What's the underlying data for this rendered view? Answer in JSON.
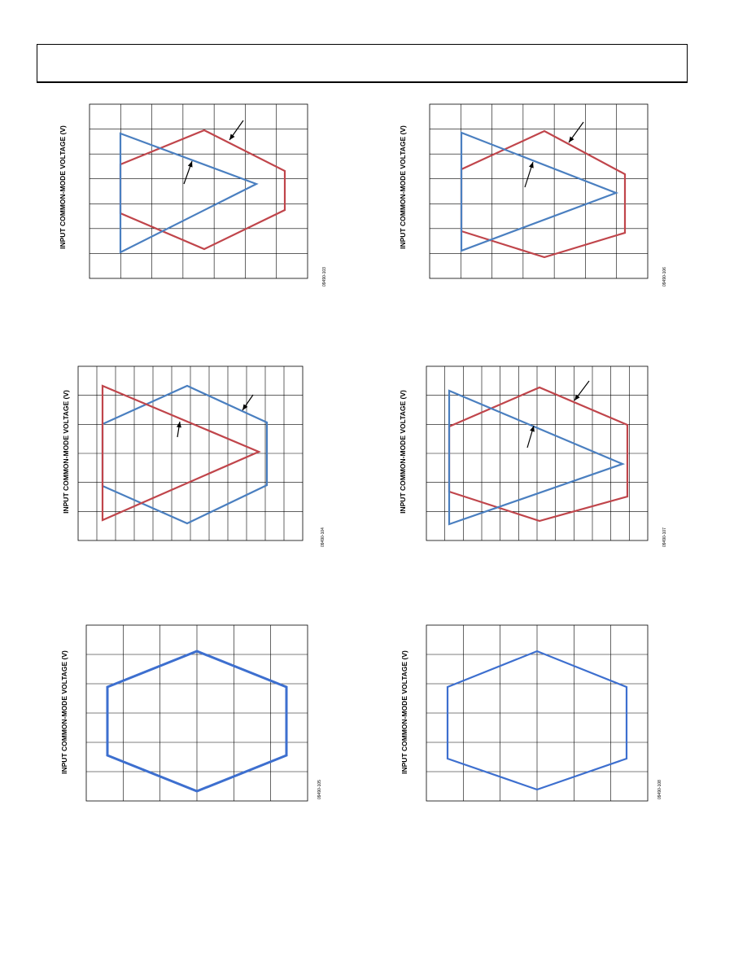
{
  "page": {
    "header_text": ""
  },
  "colors": {
    "red_trace": "#c0454b",
    "blue_trace": "#4a7fc0",
    "blue_trace_bottom": "#3d6fcf",
    "grid": "#000000"
  },
  "figures": [
    {
      "ylabel": "INPUT COMMON-MODE VOLTAGE (V)",
      "figure_id": "09490-103"
    },
    {
      "ylabel": "INPUT COMMON-MODE VOLTAGE (V)",
      "figure_id": "09490-106"
    },
    {
      "ylabel": "INPUT COMMON-MODE VOLTAGE (V)",
      "figure_id": "09490-104"
    },
    {
      "ylabel": "INPUT COMMON-MODE VOLTAGE (V)",
      "figure_id": "09490-107"
    },
    {
      "ylabel": "INPUT COMMON-MODE VOLTAGE (V)",
      "figure_id": "09490-105"
    },
    {
      "ylabel": "INPUT COMMON-MODE VOLTAGE (V)",
      "figure_id": "09490-108"
    }
  ],
  "chart_data": [
    {
      "type": "line",
      "title": "",
      "xlabel": "",
      "ylabel": "INPUT COMMON-MODE VOLTAGE (V)",
      "grid": true,
      "series": [
        {
          "color": "red",
          "shape": "hexagon"
        },
        {
          "color": "blue",
          "shape": "triangle"
        }
      ]
    },
    {
      "type": "line",
      "title": "",
      "xlabel": "",
      "ylabel": "INPUT COMMON-MODE VOLTAGE (V)",
      "grid": true,
      "series": [
        {
          "color": "red",
          "shape": "hexagon"
        },
        {
          "color": "blue",
          "shape": "triangle"
        }
      ]
    },
    {
      "type": "line",
      "title": "",
      "xlabel": "",
      "ylabel": "INPUT COMMON-MODE VOLTAGE (V)",
      "grid": true,
      "series": [
        {
          "color": "blue",
          "shape": "hexagon"
        },
        {
          "color": "red",
          "shape": "triangle"
        }
      ]
    },
    {
      "type": "line",
      "title": "",
      "xlabel": "",
      "ylabel": "INPUT COMMON-MODE VOLTAGE (V)",
      "grid": true,
      "series": [
        {
          "color": "red",
          "shape": "hexagon"
        },
        {
          "color": "blue",
          "shape": "triangle"
        }
      ]
    },
    {
      "type": "line",
      "title": "",
      "xlabel": "",
      "ylabel": "INPUT COMMON-MODE VOLTAGE (V)",
      "grid": true,
      "series": [
        {
          "color": "blue",
          "shape": "hexagon"
        }
      ]
    },
    {
      "type": "line",
      "title": "",
      "xlabel": "",
      "ylabel": "INPUT COMMON-MODE VOLTAGE (V)",
      "grid": true,
      "series": [
        {
          "color": "blue",
          "shape": "hexagon"
        }
      ]
    }
  ]
}
